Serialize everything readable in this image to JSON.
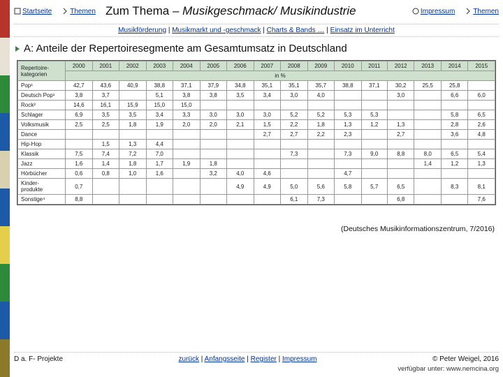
{
  "stripe_colors": [
    "#b7342a",
    "#e7e2d4",
    "#2c8a3a",
    "#1c5aa8",
    "#d9d0b0",
    "#1c5aa8",
    "#e3cf4a",
    "#2c8a3a",
    "#1c5aa8",
    "#8a7a2a"
  ],
  "nav": {
    "startseite": "Startseite",
    "themen_left": "Themen",
    "impressum": "Impressum",
    "themen_right": "Themen"
  },
  "title_prefix": "Zum Thema – ",
  "title_em": "Musikgeschmack/ Musikindustrie",
  "subnav": {
    "a": "Musikförderung",
    "b": "Musikmarkt und -geschmack",
    "c": "Charts & Bands …",
    "d": "Einsatz im Unterricht"
  },
  "heading": "A: Anteile der Repertoiresegmente am Gesamtumsatz in Deutschland",
  "table": {
    "corner": "Repertoire-\nkategorien",
    "unit": "in %",
    "years": [
      "2000",
      "2001",
      "2002",
      "2003",
      "2004",
      "2005",
      "2006",
      "2007",
      "2008",
      "2009",
      "2010",
      "2011",
      "2012",
      "2013",
      "2014",
      "2015"
    ],
    "rows": [
      {
        "label": "Pop¹",
        "v": [
          "42,7",
          "43,6",
          "40,9",
          "38,8",
          "37,1",
          "37,9",
          "34,8",
          "35,1",
          "35,1",
          "35,7",
          "38,8",
          "37,1",
          "30,2",
          "25,5",
          "25,8",
          ""
        ]
      },
      {
        "label": "Deutsch Pop¹",
        "v": [
          "3,8",
          "3,7",
          "",
          "5,1",
          "3,8",
          "3,8",
          "3,5",
          "3,4",
          "3,0",
          "4,0",
          "",
          "",
          "3,0",
          "",
          "6,6",
          "6,0"
        ]
      },
      {
        "label": "Rock²",
        "v": [
          "14,6",
          "16,1",
          "15,9",
          "15,0",
          "15,0",
          "",
          "",
          "",
          "",
          "",
          "",
          "",
          "",
          "",
          "",
          ""
        ]
      },
      {
        "label": "Schlager",
        "v": [
          "6,9",
          "3,5",
          "3,5",
          "3,4",
          "3,3",
          "3,0",
          "3,0",
          "3,0",
          "5,2",
          "5,2",
          "5,3",
          "5,3",
          "",
          "",
          "5,8",
          "6,5"
        ]
      },
      {
        "label": "Volksmusik",
        "v": [
          "2,5",
          "2,5",
          "1,8",
          "1,9",
          "2,0",
          "2,0",
          "2,1",
          "1,5",
          "2,2",
          "1,8",
          "1,3",
          "1,2",
          "1,3",
          "",
          "2,8",
          "2,6"
        ]
      },
      {
        "label": "Dance",
        "v": [
          "",
          "",
          "",
          "",
          "",
          "",
          "",
          "2,7",
          "2,7",
          "2,2",
          "2,3",
          "",
          "2,7",
          "",
          "3,6",
          "4,8"
        ]
      },
      {
        "label": "Hip-Hop",
        "v": [
          "",
          "1,5",
          "1,3",
          "4,4",
          "",
          "",
          "",
          "",
          "",
          "",
          "",
          "",
          "",
          "",
          "",
          ""
        ]
      },
      {
        "label": "Klassik",
        "v": [
          "7,5",
          "7,4",
          "7,2",
          "7,0",
          "",
          "",
          "",
          "",
          "7,3",
          "",
          "7,3",
          "9,0",
          "8,8",
          "8,0",
          "6,5",
          "5,4"
        ]
      },
      {
        "label": "Jazz",
        "v": [
          "1,6",
          "1,4",
          "1,8",
          "1,7",
          "1,9",
          "1,8",
          "",
          "",
          "",
          "",
          "",
          "",
          "",
          "1,4",
          "1,2",
          "1,3"
        ]
      },
      {
        "label": "Hörbücher",
        "v": [
          "0,6",
          "0,8",
          "1,0",
          "1,6",
          "",
          "3,2",
          "4,0",
          "4,6",
          "",
          "",
          "4,7",
          "",
          "",
          "",
          "",
          ""
        ]
      },
      {
        "label": "Kinder-\nprodukte",
        "v": [
          "0,7",
          "",
          "",
          "",
          "",
          "",
          "4,9",
          "4,9",
          "5,0",
          "5,6",
          "5,8",
          "5,7",
          "6,5",
          "",
          "8,3",
          "8,1"
        ]
      },
      {
        "label": "Sonstige⁴",
        "v": [
          "8,8",
          "",
          "",
          "",
          "",
          "",
          "",
          "",
          "6,1",
          "7,3",
          "",
          "",
          "6,8",
          "",
          "",
          "7,6"
        ]
      }
    ],
    "header_bg": "#cfe0cf",
    "border_color": "#999999"
  },
  "source": "(Deutsches Musikinformationszentrum, 7/2016)",
  "footer": {
    "left": "D a. F- Projekte",
    "links": {
      "zurueck": "zurück",
      "anfang": "Anfangsseite",
      "register": "Register",
      "impressum": "Impressum"
    },
    "right": "© Peter Weigel, 2016",
    "avail": "verfügbar unter: www.nemcina.org"
  }
}
